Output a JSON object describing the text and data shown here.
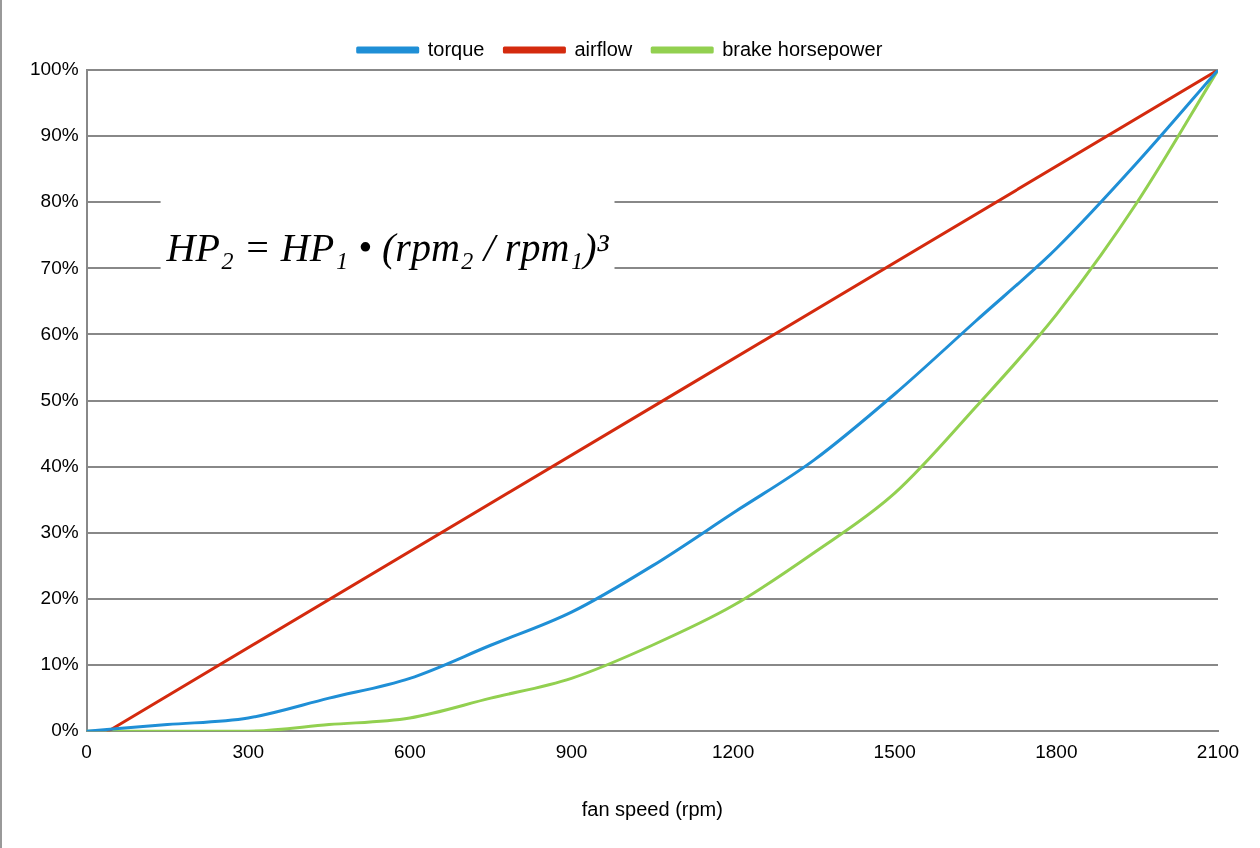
{
  "chart_data": {
    "type": "line",
    "xlabel": "fan speed (rpm)",
    "xlim": [
      0,
      2100
    ],
    "xticks": [
      0,
      300,
      600,
      900,
      1200,
      1500,
      1800,
      2100
    ],
    "ylim": [
      0,
      100
    ],
    "yticks": [
      {
        "value": 0,
        "label": "0%"
      },
      {
        "value": 10,
        "label": "10%"
      },
      {
        "value": 20,
        "label": "20%"
      },
      {
        "value": 30,
        "label": "30%"
      },
      {
        "value": 40,
        "label": "40%"
      },
      {
        "value": 50,
        "label": "50%"
      },
      {
        "value": 60,
        "label": "60%"
      },
      {
        "value": 70,
        "label": "70%"
      },
      {
        "value": 80,
        "label": "80%"
      },
      {
        "value": 90,
        "label": "90%"
      },
      {
        "value": 100,
        "label": "100%"
      }
    ],
    "grid": "y",
    "legend": "top",
    "marker": "none",
    "line_style": "solid",
    "annotations": [
      "HP₂ = HP₁ • (rpm₂ / rpm₁)³"
    ],
    "series": [
      {
        "name": "torque",
        "color": "#1f8fd6",
        "x": [
          0,
          150,
          300,
          450,
          600,
          750,
          900,
          1050,
          1200,
          1350,
          1500,
          1650,
          1800,
          1950,
          2100
        ],
        "values": [
          0,
          1,
          2,
          5,
          8,
          13,
          18,
          25,
          33,
          41,
          51,
          62,
          73,
          86,
          100
        ]
      },
      {
        "name": "airflow",
        "color": "#d42a0e",
        "x": [
          40,
          2100
        ],
        "values": [
          0,
          100
        ]
      },
      {
        "name": "brake horsepower",
        "color": "#92d050",
        "x": [
          0,
          150,
          300,
          450,
          600,
          750,
          900,
          1050,
          1200,
          1350,
          1500,
          1650,
          1800,
          1950,
          2100
        ],
        "values": [
          0,
          0,
          0,
          1,
          2,
          5,
          8,
          13,
          19,
          27,
          36,
          49,
          63,
          80,
          100
        ]
      }
    ]
  }
}
